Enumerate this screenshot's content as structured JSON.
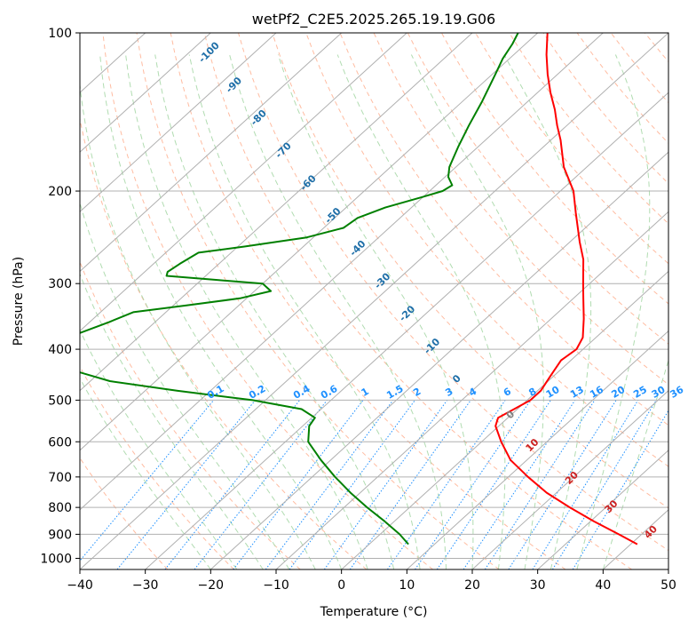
{
  "chart_data": {
    "type": "line",
    "title": "wetPf2_C2E5.2025.265.19.19.G06",
    "xlabel": "Temperature (°C)",
    "ylabel": "Pressure (hPa)",
    "xlim": [
      -40,
      50
    ],
    "ylim": [
      1050,
      100
    ],
    "y_scale": "log",
    "grid": true,
    "x_ticks": [
      -40,
      -30,
      -20,
      -10,
      0,
      10,
      20,
      30,
      40,
      50
    ],
    "y_ticks": [
      100,
      200,
      300,
      400,
      500,
      600,
      700,
      800,
      900,
      1000
    ],
    "series": [
      {
        "role": "temperature",
        "color": "#ff0000",
        "points": [
          [
            940,
            41.0
          ],
          [
            900,
            36.5
          ],
          [
            850,
            30.5
          ],
          [
            800,
            24.5
          ],
          [
            750,
            18.5
          ],
          [
            700,
            13.0
          ],
          [
            650,
            7.5
          ],
          [
            600,
            3.0
          ],
          [
            560,
            -0.5
          ],
          [
            540,
            -1.5
          ],
          [
            520,
            -0.5
          ],
          [
            500,
            0.5
          ],
          [
            480,
            0.5
          ],
          [
            450,
            -0.5
          ],
          [
            420,
            -1.5
          ],
          [
            400,
            -1.0
          ],
          [
            380,
            -2.0
          ],
          [
            350,
            -5.0
          ],
          [
            320,
            -8.5
          ],
          [
            300,
            -11.0
          ],
          [
            270,
            -15.0
          ],
          [
            250,
            -18.5
          ],
          [
            220,
            -24.0
          ],
          [
            200,
            -28.0
          ],
          [
            180,
            -33.5
          ],
          [
            160,
            -38.5
          ],
          [
            150,
            -41.5
          ],
          [
            140,
            -44.5
          ],
          [
            130,
            -48.0
          ],
          [
            120,
            -51.5
          ],
          [
            110,
            -55.0
          ],
          [
            100,
            -58.5
          ]
        ]
      },
      {
        "role": "dewpoint",
        "color": "#008000",
        "points": [
          [
            940,
            6.0
          ],
          [
            900,
            3.0
          ],
          [
            850,
            -1.5
          ],
          [
            800,
            -6.5
          ],
          [
            750,
            -11.5
          ],
          [
            700,
            -16.5
          ],
          [
            650,
            -21.5
          ],
          [
            600,
            -26.5
          ],
          [
            560,
            -29.0
          ],
          [
            540,
            -29.5
          ],
          [
            520,
            -33.0
          ],
          [
            500,
            -42.0
          ],
          [
            480,
            -55.0
          ],
          [
            460,
            -67.0
          ],
          [
            440,
            -74.0
          ],
          [
            425,
            -77.0
          ],
          [
            410,
            -80.5
          ],
          [
            395,
            -82.0
          ],
          [
            375,
            -80.0
          ],
          [
            355,
            -77.0
          ],
          [
            340,
            -75.0
          ],
          [
            330,
            -68.0
          ],
          [
            320,
            -61.0
          ],
          [
            310,
            -57.5
          ],
          [
            300,
            -60.0
          ],
          [
            295,
            -68.0
          ],
          [
            290,
            -76.0
          ],
          [
            285,
            -76.5
          ],
          [
            275,
            -76.0
          ],
          [
            262,
            -75.0
          ],
          [
            255,
            -69.0
          ],
          [
            245,
            -61.0
          ],
          [
            235,
            -57.0
          ],
          [
            225,
            -56.5
          ],
          [
            215,
            -54.0
          ],
          [
            205,
            -50.0
          ],
          [
            200,
            -48.0
          ],
          [
            195,
            -47.5
          ],
          [
            188,
            -49.5
          ],
          [
            180,
            -51.0
          ],
          [
            165,
            -53.0
          ],
          [
            150,
            -55.0
          ],
          [
            135,
            -57.0
          ],
          [
            120,
            -59.5
          ],
          [
            112,
            -61.0
          ],
          [
            105,
            -62.0
          ],
          [
            100,
            -63.0
          ]
        ]
      }
    ],
    "isotherm_color": "#b0b0b0",
    "dry_adiabat_color": "#ffb090",
    "moist_adiabat_color": "#a8d8a8",
    "mixing_ratio_color": "#1e90ff",
    "annotations": {
      "moist_adiabat_labels": [
        "-100",
        "-90",
        "-80",
        "-70",
        "-60",
        "-50",
        "-40",
        "-30",
        "-20",
        "-10",
        "0"
      ],
      "mixing_ratio_labels": [
        "0.1",
        "0.2",
        "0.4",
        "0.6",
        "1",
        "1.5",
        "2",
        "3",
        "4",
        "6",
        "8",
        "10",
        "13",
        "16",
        "20",
        "25",
        "30",
        "36"
      ],
      "dry_adiabat_labels": [
        "10",
        "20",
        "30",
        "40"
      ]
    }
  }
}
